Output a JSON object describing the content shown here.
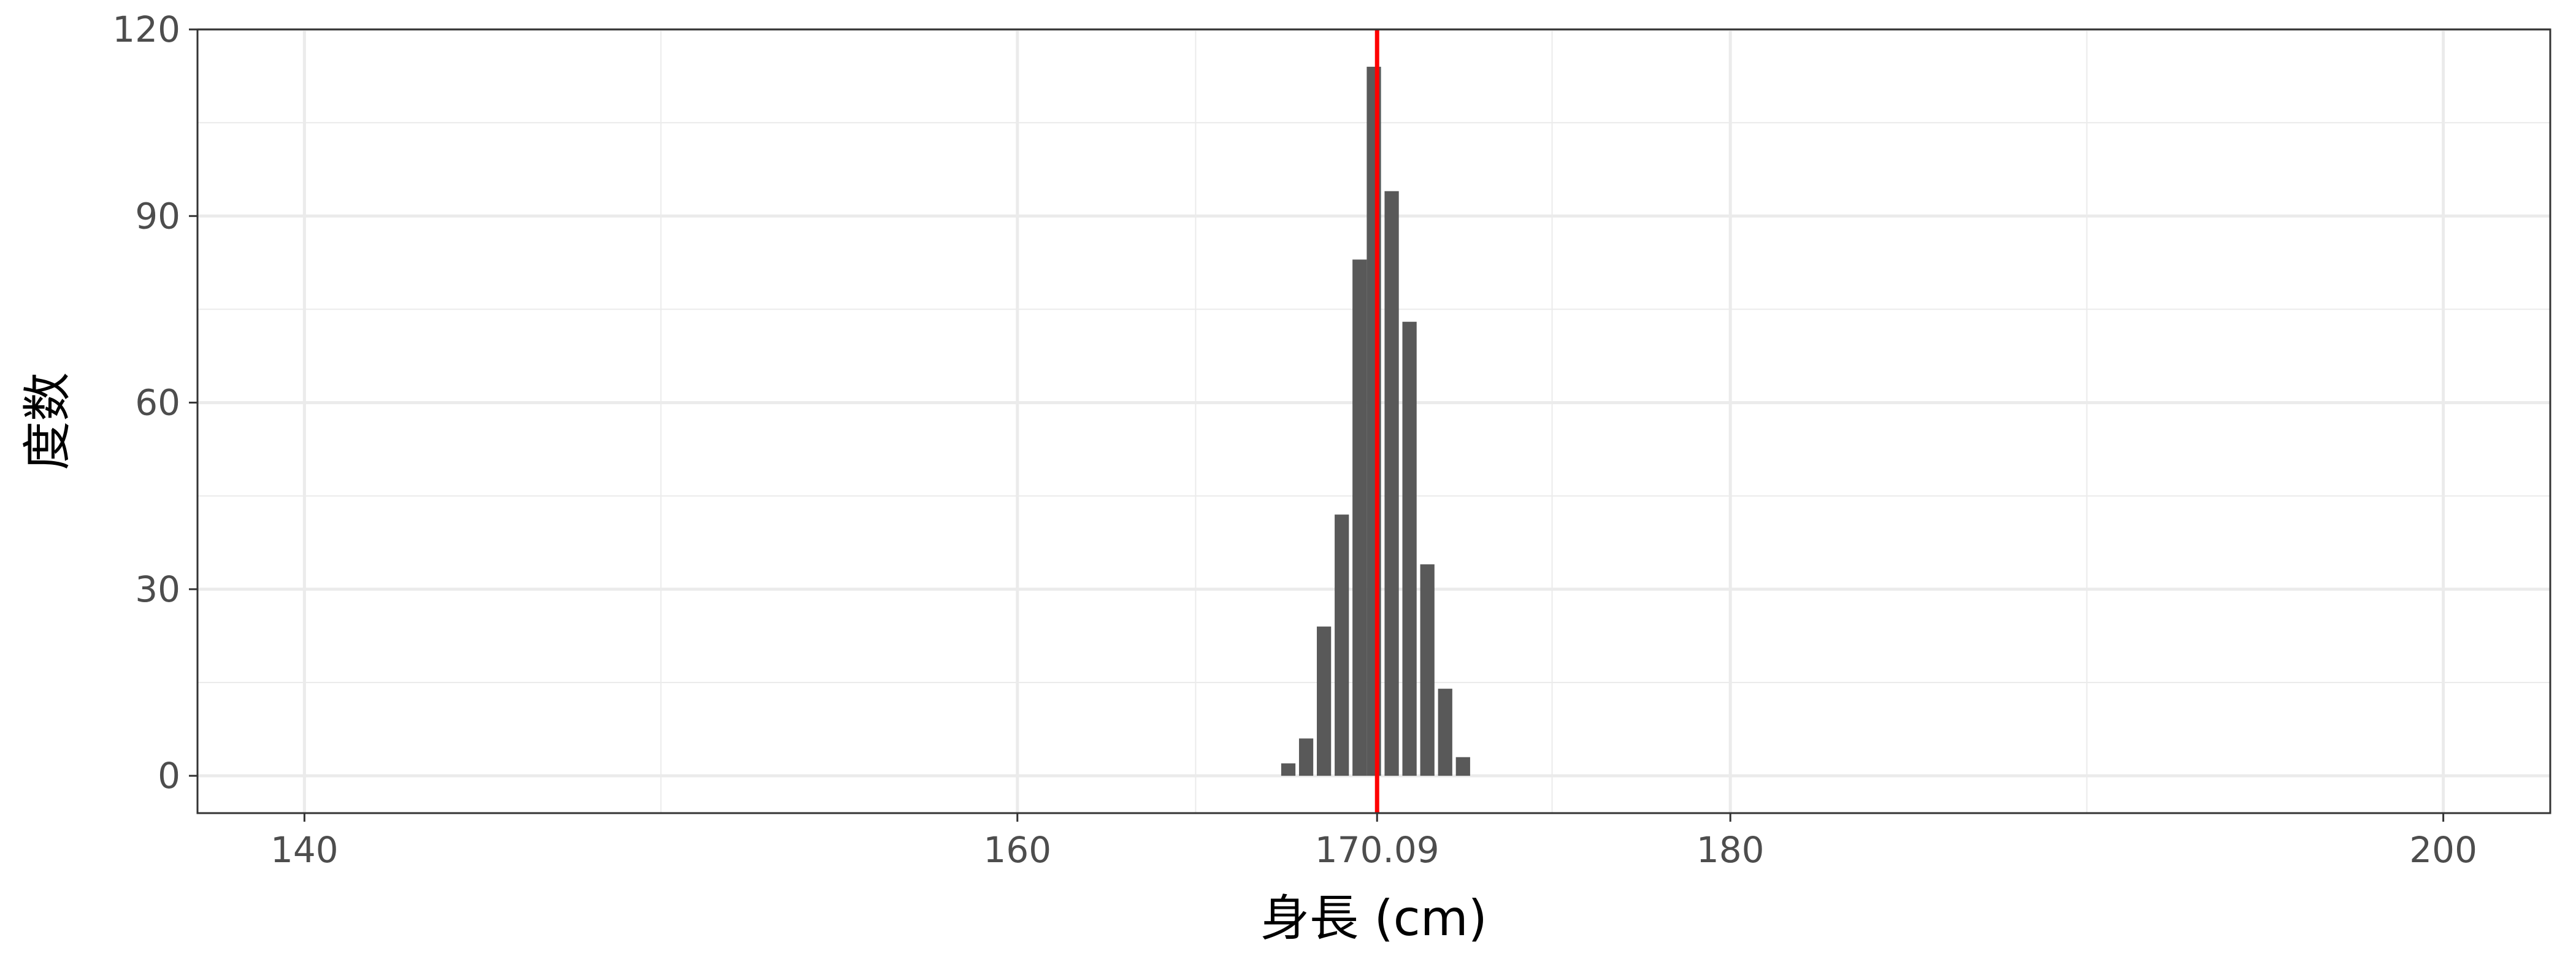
{
  "chart_data": {
    "type": "bar",
    "xlabel": "身長 (cm)",
    "ylabel": "度数",
    "xlim": [
      137,
      203
    ],
    "ylim": [
      -6,
      120
    ],
    "x_ticks": [
      140,
      160,
      170.09,
      180,
      200
    ],
    "x_tick_labels": [
      "140",
      "160",
      "170.09",
      "180",
      "200"
    ],
    "y_ticks": [
      0,
      30,
      60,
      90,
      120
    ],
    "y_tick_labels": [
      "0",
      "30",
      "60",
      "90",
      "120"
    ],
    "bin_width": 0.5,
    "bins": [
      {
        "x": 167.6,
        "count": 2
      },
      {
        "x": 168.1,
        "count": 6
      },
      {
        "x": 168.6,
        "count": 24
      },
      {
        "x": 169.1,
        "count": 42
      },
      {
        "x": 169.6,
        "count": 83
      },
      {
        "x": 170.0,
        "count": 114
      },
      {
        "x": 170.5,
        "count": 94
      },
      {
        "x": 171.0,
        "count": 73
      },
      {
        "x": 171.5,
        "count": 34
      },
      {
        "x": 172.0,
        "count": 14
      },
      {
        "x": 172.5,
        "count": 3
      }
    ],
    "mean_line": {
      "x": 170.09,
      "color": "#ff0000"
    },
    "bar_color": "#595959",
    "grid": true,
    "legend": "none"
  }
}
